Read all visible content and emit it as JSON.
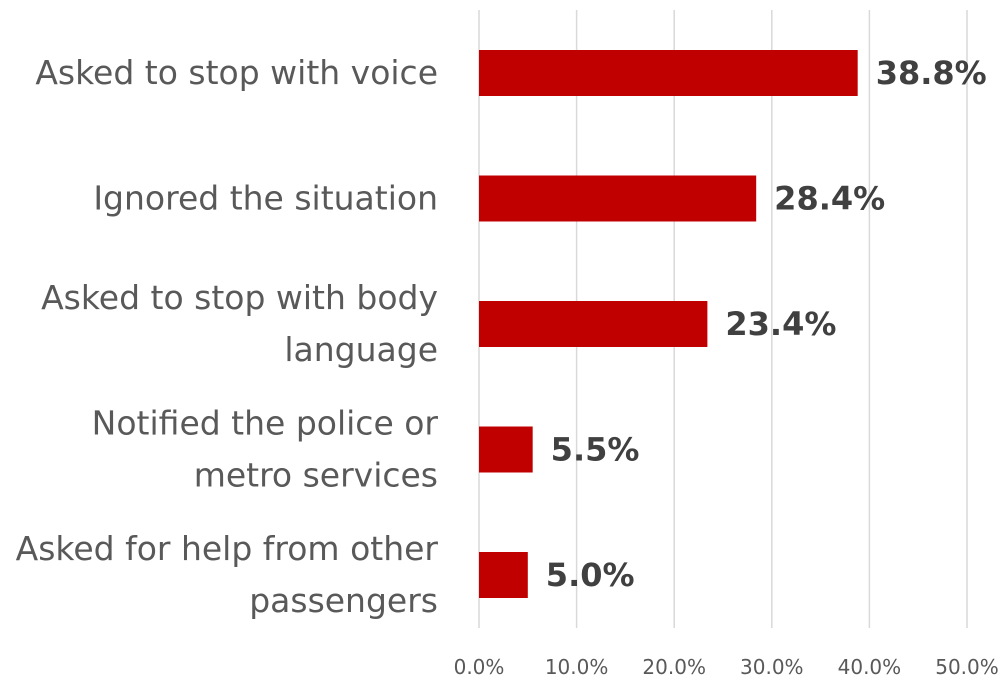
{
  "chart_data": {
    "type": "bar",
    "orientation": "horizontal",
    "categories": [
      [
        "Asked to stop with voice"
      ],
      [
        "Ignored the situation"
      ],
      [
        "Asked to stop with body",
        "language"
      ],
      [
        "Notified the police or",
        "metro services"
      ],
      [
        "Asked for help from other",
        "passengers"
      ]
    ],
    "values": [
      38.8,
      28.4,
      23.4,
      5.5,
      5.0
    ],
    "value_labels": [
      "38.8%",
      "28.4%",
      "23.4%",
      "5.5%",
      "5.0%"
    ],
    "xlim": [
      0,
      50
    ],
    "xticks": [
      "0.0%",
      "10.0%",
      "20.0%",
      "30.0%",
      "40.0%",
      "50.0%"
    ],
    "title": "",
    "xlabel": "",
    "ylabel": "",
    "grid": "vertical",
    "legend": "none",
    "colors": {
      "bar": "#c00000",
      "grid": "#d9d9d9",
      "label": "#595959",
      "value": "#404040"
    }
  }
}
